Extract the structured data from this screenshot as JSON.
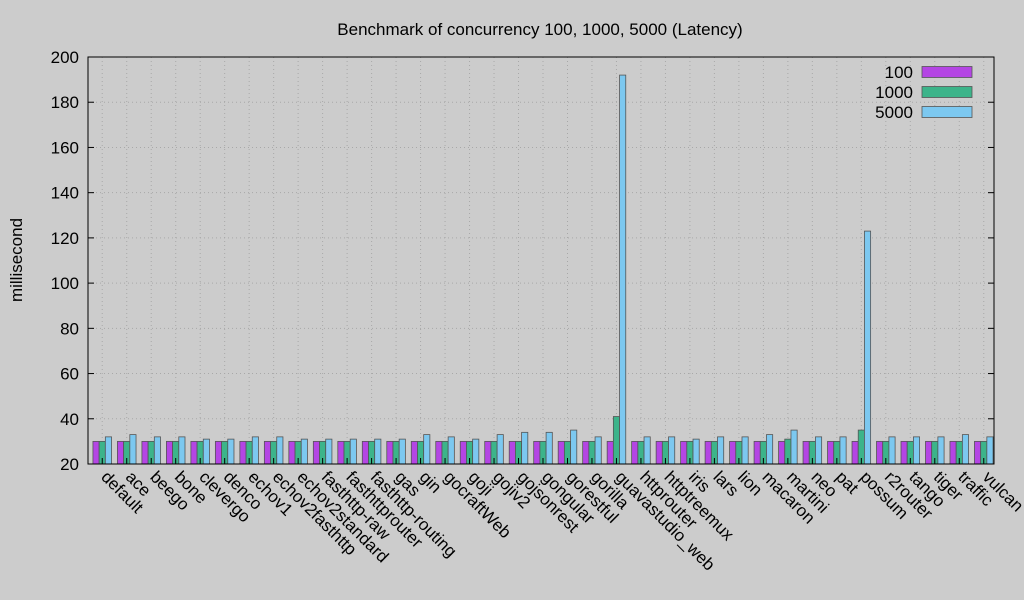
{
  "chart_data": {
    "type": "bar",
    "title": "Benchmark of concurrency 100, 1000, 5000 (Latency)",
    "xlabel": "",
    "ylabel": "millisecond",
    "ylim": [
      20,
      200
    ],
    "yticks": [
      20,
      40,
      60,
      80,
      100,
      120,
      140,
      160,
      180,
      200
    ],
    "grid": true,
    "legend_position": "top-right",
    "categories": [
      "default",
      "ace",
      "beego",
      "bone",
      "clevergo",
      "denco",
      "echov1",
      "echov2fasthttp",
      "echov2standard",
      "fasthttp-raw",
      "fasthttprouter",
      "fasthttp-routing",
      "gas",
      "gin",
      "gocraftWeb",
      "goji",
      "gojiv2",
      "gojsonrest",
      "gongular",
      "gorestful",
      "gorilla",
      "guavastudio_web",
      "httprouter",
      "httptreemux",
      "iris",
      "lars",
      "lion",
      "macaron",
      "martini",
      "neo",
      "pat",
      "possum",
      "r2router",
      "tango",
      "tiger",
      "traffic",
      "vulcan"
    ],
    "series": [
      {
        "name": "100",
        "color": "#b445e4",
        "values": [
          30,
          30,
          30,
          30,
          30,
          30,
          30,
          30,
          30,
          30,
          30,
          30,
          30,
          30,
          30,
          30,
          30,
          30,
          30,
          30,
          30,
          30,
          30,
          30,
          30,
          30,
          30,
          30,
          30,
          30,
          30,
          30,
          30,
          30,
          30,
          30,
          30
        ]
      },
      {
        "name": "1000",
        "color": "#3cb48a",
        "values": [
          30,
          30,
          30,
          30,
          30,
          30,
          30,
          30,
          30,
          30,
          30,
          30,
          30,
          30,
          30,
          30,
          30,
          30,
          30,
          30,
          30,
          41,
          30,
          30,
          30,
          30,
          30,
          30,
          31,
          30,
          30,
          35,
          30,
          30,
          30,
          30,
          30
        ]
      },
      {
        "name": "5000",
        "color": "#7cc8f0",
        "values": [
          32,
          33,
          32,
          32,
          31,
          31,
          32,
          32,
          31,
          31,
          31,
          31,
          31,
          33,
          32,
          31,
          33,
          34,
          34,
          35,
          32,
          192,
          32,
          32,
          31,
          32,
          32,
          33,
          35,
          32,
          32,
          123,
          32,
          32,
          32,
          33,
          32
        ]
      }
    ]
  }
}
